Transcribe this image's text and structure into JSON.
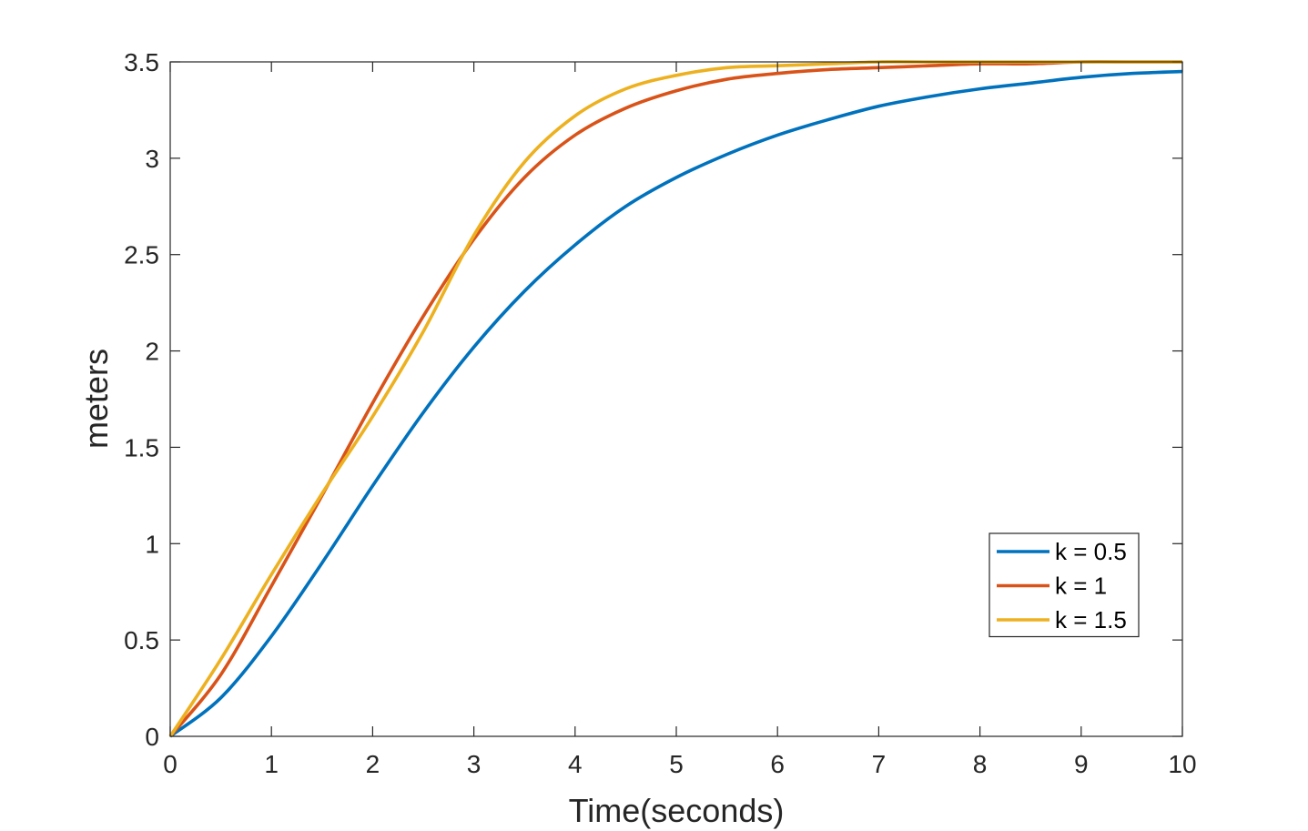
{
  "chart_data": {
    "type": "line",
    "title": "",
    "xlabel": "Time(seconds)",
    "ylabel": "meters",
    "xlim": [
      0,
      10
    ],
    "ylim": [
      0,
      3.5
    ],
    "xticks": [
      0,
      1,
      2,
      3,
      4,
      5,
      6,
      7,
      8,
      9,
      10
    ],
    "yticks": [
      0,
      0.5,
      1,
      1.5,
      2,
      2.5,
      3,
      3.5
    ],
    "xtick_labels": [
      "0",
      "1",
      "2",
      "3",
      "4",
      "5",
      "6",
      "7",
      "8",
      "9",
      "10"
    ],
    "ytick_labels": [
      "0",
      "0.5",
      "1",
      "1.5",
      "2",
      "2.5",
      "3",
      "3.5"
    ],
    "grid": false,
    "legend_position": "bottom-right",
    "x": [
      0,
      0.5,
      1,
      1.5,
      2,
      2.5,
      3,
      3.5,
      4,
      4.5,
      5,
      5.5,
      6,
      6.5,
      7,
      7.5,
      8,
      8.5,
      9,
      9.5,
      10
    ],
    "series": [
      {
        "name": "k = 0.5",
        "color": "#0072BD",
        "values": [
          0,
          0.2,
          0.52,
          0.9,
          1.3,
          1.68,
          2.02,
          2.31,
          2.55,
          2.75,
          2.9,
          3.02,
          3.12,
          3.2,
          3.27,
          3.32,
          3.36,
          3.39,
          3.42,
          3.44,
          3.45
        ]
      },
      {
        "name": "k = 1",
        "color": "#D95319",
        "values": [
          0,
          0.32,
          0.78,
          1.25,
          1.73,
          2.18,
          2.58,
          2.9,
          3.12,
          3.26,
          3.35,
          3.41,
          3.44,
          3.46,
          3.47,
          3.48,
          3.49,
          3.49,
          3.5,
          3.5,
          3.5
        ]
      },
      {
        "name": "k = 1.5",
        "color": "#EDB120",
        "values": [
          0,
          0.4,
          0.84,
          1.26,
          1.66,
          2.1,
          2.6,
          2.98,
          3.22,
          3.36,
          3.43,
          3.47,
          3.48,
          3.49,
          3.5,
          3.5,
          3.5,
          3.5,
          3.5,
          3.5,
          3.5
        ]
      }
    ]
  }
}
